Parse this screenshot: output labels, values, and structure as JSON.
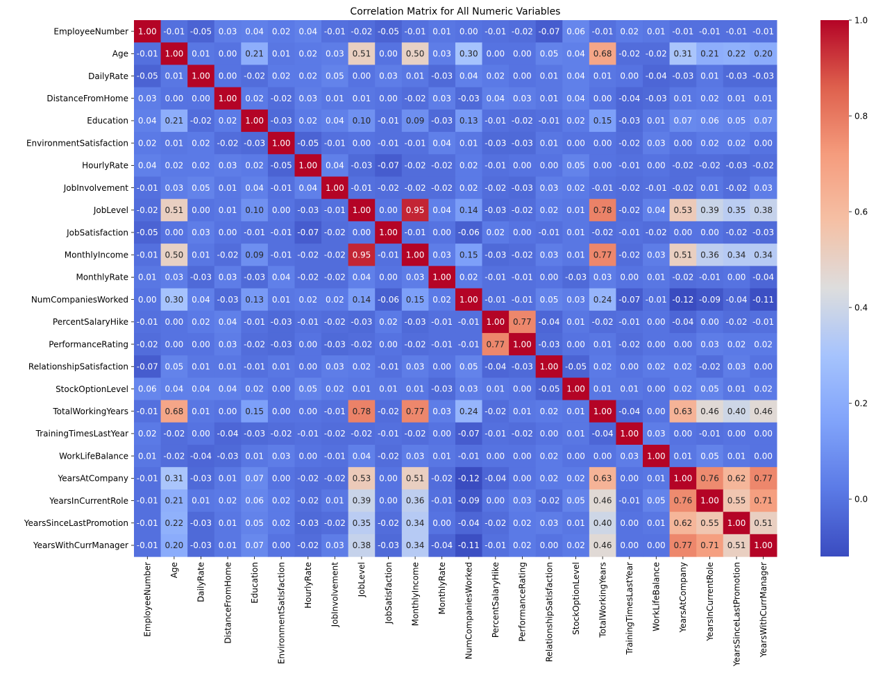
{
  "chart_data": {
    "type": "heatmap",
    "title": "Correlation Matrix for All Numeric Variables",
    "xlabel": "",
    "ylabel": "",
    "colormap": "coolwarm",
    "vmin": -0.12,
    "vmax": 1.0,
    "colorbar_ticks": [
      "1.0",
      "0.8",
      "0.6",
      "0.4",
      "0.2",
      "0.0"
    ],
    "variables": [
      "EmployeeNumber",
      "Age",
      "DailyRate",
      "DistanceFromHome",
      "Education",
      "EnvironmentSatisfaction",
      "HourlyRate",
      "JobInvolvement",
      "JobLevel",
      "JobSatisfaction",
      "MonthlyIncome",
      "MonthlyRate",
      "NumCompaniesWorked",
      "PercentSalaryHike",
      "PerformanceRating",
      "RelationshipSatisfaction",
      "StockOptionLevel",
      "TotalWorkingYears",
      "TrainingTimesLastYear",
      "WorkLifeBalance",
      "YearsAtCompany",
      "YearsInCurrentRole",
      "YearsSinceLastPromotion",
      "YearsWithCurrManager"
    ],
    "values": [
      [
        1.0,
        -0.01,
        -0.05,
        0.03,
        0.04,
        0.02,
        0.04,
        -0.01,
        -0.02,
        -0.05,
        -0.01,
        0.01,
        -0.0,
        -0.01,
        -0.02,
        -0.07,
        0.06,
        -0.01,
        0.02,
        0.01,
        -0.01,
        -0.01,
        -0.01,
        -0.01
      ],
      [
        -0.01,
        1.0,
        0.01,
        -0.0,
        0.21,
        0.01,
        0.02,
        0.03,
        0.51,
        -0.0,
        0.5,
        0.03,
        0.3,
        0.0,
        0.0,
        0.05,
        0.04,
        0.68,
        -0.02,
        -0.02,
        0.31,
        0.21,
        0.22,
        0.2
      ],
      [
        -0.05,
        0.01,
        1.0,
        -0.0,
        -0.02,
        0.02,
        0.02,
        0.05,
        0.0,
        0.03,
        0.01,
        -0.03,
        0.04,
        0.02,
        0.0,
        0.01,
        0.04,
        0.01,
        0.0,
        -0.04,
        -0.03,
        0.01,
        -0.03,
        -0.03
      ],
      [
        0.03,
        -0.0,
        -0.0,
        1.0,
        0.02,
        -0.02,
        0.03,
        0.01,
        0.01,
        -0.0,
        -0.02,
        0.03,
        -0.03,
        0.04,
        0.03,
        0.01,
        0.04,
        0.0,
        -0.04,
        -0.03,
        0.01,
        0.02,
        0.01,
        0.01
      ],
      [
        0.04,
        0.21,
        -0.02,
        0.02,
        1.0,
        -0.03,
        0.02,
        0.04,
        0.1,
        -0.01,
        0.09,
        -0.03,
        0.13,
        -0.01,
        -0.02,
        -0.01,
        0.02,
        0.15,
        -0.03,
        0.01,
        0.07,
        0.06,
        0.05,
        0.07
      ],
      [
        0.02,
        0.01,
        0.02,
        -0.02,
        -0.03,
        1.0,
        -0.05,
        -0.01,
        0.0,
        -0.01,
        -0.01,
        0.04,
        0.01,
        -0.03,
        -0.03,
        0.01,
        0.0,
        -0.0,
        -0.02,
        0.03,
        0.0,
        0.02,
        0.02,
        -0.0
      ],
      [
        0.04,
        0.02,
        0.02,
        0.03,
        0.02,
        -0.05,
        1.0,
        0.04,
        -0.03,
        -0.07,
        -0.02,
        -0.02,
        0.02,
        -0.01,
        -0.0,
        0.0,
        0.05,
        -0.0,
        -0.01,
        -0.0,
        -0.02,
        -0.02,
        -0.03,
        -0.02
      ],
      [
        -0.01,
        0.03,
        0.05,
        0.01,
        0.04,
        -0.01,
        0.04,
        1.0,
        -0.01,
        -0.02,
        -0.02,
        -0.02,
        0.02,
        -0.02,
        -0.03,
        0.03,
        0.02,
        -0.01,
        -0.02,
        -0.01,
        -0.02,
        0.01,
        -0.02,
        0.03
      ],
      [
        -0.02,
        0.51,
        0.0,
        0.01,
        0.1,
        0.0,
        -0.03,
        -0.01,
        1.0,
        -0.0,
        0.95,
        0.04,
        0.14,
        -0.03,
        -0.02,
        0.02,
        0.01,
        0.78,
        -0.02,
        0.04,
        0.53,
        0.39,
        0.35,
        0.38
      ],
      [
        -0.05,
        -0.0,
        0.03,
        -0.0,
        -0.01,
        -0.01,
        -0.07,
        -0.02,
        -0.0,
        1.0,
        -0.01,
        0.0,
        -0.06,
        0.02,
        0.0,
        -0.01,
        0.01,
        -0.02,
        -0.01,
        -0.02,
        -0.0,
        -0.0,
        -0.02,
        -0.03
      ],
      [
        -0.01,
        0.5,
        0.01,
        -0.02,
        0.09,
        -0.01,
        -0.02,
        -0.02,
        0.95,
        -0.01,
        1.0,
        0.03,
        0.15,
        -0.03,
        -0.02,
        0.03,
        0.01,
        0.77,
        -0.02,
        0.03,
        0.51,
        0.36,
        0.34,
        0.34
      ],
      [
        0.01,
        0.03,
        -0.03,
        0.03,
        -0.03,
        0.04,
        -0.02,
        -0.02,
        0.04,
        0.0,
        0.03,
        1.0,
        0.02,
        -0.01,
        -0.01,
        -0.0,
        -0.03,
        0.03,
        0.0,
        0.01,
        -0.02,
        -0.01,
        0.0,
        -0.04
      ],
      [
        -0.0,
        0.3,
        0.04,
        -0.03,
        0.13,
        0.01,
        0.02,
        0.02,
        0.14,
        -0.06,
        0.15,
        0.02,
        1.0,
        -0.01,
        -0.01,
        0.05,
        0.03,
        0.24,
        -0.07,
        -0.01,
        -0.12,
        -0.09,
        -0.04,
        -0.11
      ],
      [
        -0.01,
        0.0,
        0.02,
        0.04,
        -0.01,
        -0.03,
        -0.01,
        -0.02,
        -0.03,
        0.02,
        -0.03,
        -0.01,
        -0.01,
        1.0,
        0.77,
        -0.04,
        0.01,
        -0.02,
        -0.01,
        -0.0,
        -0.04,
        -0.0,
        -0.02,
        -0.01
      ],
      [
        -0.02,
        0.0,
        0.0,
        0.03,
        -0.02,
        -0.03,
        -0.0,
        -0.03,
        -0.02,
        0.0,
        -0.02,
        -0.01,
        -0.01,
        0.77,
        1.0,
        -0.03,
        0.0,
        0.01,
        -0.02,
        0.0,
        0.0,
        0.03,
        0.02,
        0.02
      ],
      [
        -0.07,
        0.05,
        0.01,
        0.01,
        -0.01,
        0.01,
        0.0,
        0.03,
        0.02,
        -0.01,
        0.03,
        -0.0,
        0.05,
        -0.04,
        -0.03,
        1.0,
        -0.05,
        0.02,
        0.0,
        0.02,
        0.02,
        -0.02,
        0.03,
        -0.0
      ],
      [
        0.06,
        0.04,
        0.04,
        0.04,
        0.02,
        0.0,
        0.05,
        0.02,
        0.01,
        0.01,
        0.01,
        -0.03,
        0.03,
        0.01,
        0.0,
        -0.05,
        1.0,
        0.01,
        0.01,
        0.0,
        0.02,
        0.05,
        0.01,
        0.02
      ],
      [
        -0.01,
        0.68,
        0.01,
        0.0,
        0.15,
        -0.0,
        -0.0,
        -0.01,
        0.78,
        -0.02,
        0.77,
        0.03,
        0.24,
        -0.02,
        0.01,
        0.02,
        0.01,
        1.0,
        -0.04,
        0.0,
        0.63,
        0.46,
        0.4,
        0.46
      ],
      [
        0.02,
        -0.02,
        0.0,
        -0.04,
        -0.03,
        -0.02,
        -0.01,
        -0.02,
        -0.02,
        -0.01,
        -0.02,
        0.0,
        -0.07,
        -0.01,
        -0.02,
        0.0,
        0.01,
        -0.04,
        1.0,
        0.03,
        0.0,
        -0.01,
        -0.0,
        -0.0
      ],
      [
        0.01,
        -0.02,
        -0.04,
        -0.03,
        0.01,
        0.03,
        -0.0,
        -0.01,
        0.04,
        -0.02,
        0.03,
        0.01,
        -0.01,
        -0.0,
        0.0,
        0.02,
        0.0,
        0.0,
        0.03,
        1.0,
        0.01,
        0.05,
        0.01,
        0.0
      ],
      [
        -0.01,
        0.31,
        -0.03,
        0.01,
        0.07,
        0.0,
        -0.02,
        -0.02,
        0.53,
        -0.0,
        0.51,
        -0.02,
        -0.12,
        -0.04,
        0.0,
        0.02,
        0.02,
        0.63,
        0.0,
        0.01,
        1.0,
        0.76,
        0.62,
        0.77
      ],
      [
        -0.01,
        0.21,
        0.01,
        0.02,
        0.06,
        0.02,
        -0.02,
        0.01,
        0.39,
        -0.0,
        0.36,
        -0.01,
        -0.09,
        -0.0,
        0.03,
        -0.02,
        0.05,
        0.46,
        -0.01,
        0.05,
        0.76,
        1.0,
        0.55,
        0.71
      ],
      [
        -0.01,
        0.22,
        -0.03,
        0.01,
        0.05,
        0.02,
        -0.03,
        -0.02,
        0.35,
        -0.02,
        0.34,
        0.0,
        -0.04,
        -0.02,
        0.02,
        0.03,
        0.01,
        0.4,
        -0.0,
        0.01,
        0.62,
        0.55,
        1.0,
        0.51
      ],
      [
        -0.01,
        0.2,
        -0.03,
        0.01,
        0.07,
        -0.0,
        -0.02,
        0.03,
        0.38,
        -0.03,
        0.34,
        -0.04,
        -0.11,
        -0.01,
        0.02,
        -0.0,
        0.02,
        0.46,
        -0.0,
        0.0,
        0.77,
        0.71,
        0.51,
        1.0
      ]
    ]
  }
}
